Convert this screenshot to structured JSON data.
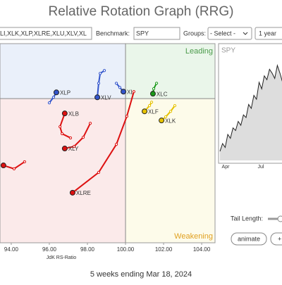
{
  "header": {
    "title": "Relative Rotation Graph (RRG)"
  },
  "controls": {
    "symbols": "LI,XLK,XLP,XLRE,XLU,XLV,XL",
    "benchmark_label": "Benchmark:",
    "benchmark": "SPY",
    "groups_label": "Groups:",
    "groups": "- Select -",
    "period": "1 year",
    "tail_length_label": "Tail Length:",
    "animate": "animate",
    "plus": "+"
  },
  "chart_data": {
    "type": "rrg",
    "xlabel": "JdK RS-Ratio",
    "xlim": [
      93.41,
      104.7
    ],
    "ylim": [
      92.4,
      102.9
    ],
    "center": [
      100,
      100
    ],
    "xticks": [
      {
        "value": 94,
        "label": "94.00"
      },
      {
        "value": 96,
        "label": "96.00"
      },
      {
        "value": 98,
        "label": "98.00"
      },
      {
        "value": 100,
        "label": "100.00"
      },
      {
        "value": 102,
        "label": "102.00"
      },
      {
        "value": 104,
        "label": "104.00"
      }
    ],
    "quadrant_labels": {
      "leading": "Leading",
      "weakening": "Weakening"
    },
    "series": [
      {
        "name": "XLP",
        "color": "#3355cc",
        "x": [
          96.0,
          96.22,
          96.37
        ],
        "y": [
          99.78,
          100.07,
          100.33
        ]
      },
      {
        "name": "XLV",
        "color": "#3355cc",
        "x": [
          98.89,
          98.67,
          98.59,
          98.52
        ],
        "y": [
          101.48,
          101.33,
          100.81,
          100.07
        ]
      },
      {
        "name": "XL",
        "color": "#3355cc",
        "x": [
          99.52,
          99.7,
          99.89
        ],
        "y": [
          100.81,
          100.59,
          100.37
        ]
      },
      {
        "name": "XLC",
        "color": "#1a9a1a",
        "x": [
          101.63,
          101.48,
          101.44
        ],
        "y": [
          100.81,
          100.52,
          100.26
        ]
      },
      {
        "name": "XLF",
        "color": "#e6c200",
        "x": [
          101.37,
          101.26,
          101.0
        ],
        "y": [
          99.81,
          99.63,
          99.33
        ]
      },
      {
        "name": "XLK",
        "color": "#e6c200",
        "x": [
          102.59,
          102.37,
          102.11,
          101.89
        ],
        "y": [
          99.63,
          99.33,
          99.04,
          98.85
        ]
      },
      {
        "name": "XLB",
        "color": "#dd1111",
        "x": [
          97.11,
          96.67,
          96.56,
          96.81
        ],
        "y": [
          97.93,
          98.15,
          98.52,
          99.22
        ]
      },
      {
        "name": "XLY",
        "color": "#dd1111",
        "x": [
          98.15,
          97.78,
          97.3,
          96.81
        ],
        "y": [
          98.7,
          97.96,
          97.48,
          97.37
        ]
      },
      {
        "name": "XLRE",
        "color": "#dd1111",
        "x": [
          100.44,
          100.07,
          99.52,
          98.59,
          97.22
        ],
        "y": [
          100.37,
          99.07,
          97.59,
          96.11,
          95.04
        ]
      },
      {
        "color": "#dd1111",
        "x": [
          94.7,
          94.15,
          93.59
        ],
        "y": [
          96.67,
          96.3,
          96.48
        ]
      }
    ]
  },
  "benchmark_chart": {
    "title": "SPY",
    "x_labels": [
      "Apr",
      "Jul"
    ],
    "ylim": [
      385,
      465
    ],
    "values": [
      392,
      398,
      395,
      405,
      402,
      410,
      408,
      415,
      412,
      420,
      418,
      428,
      425,
      435,
      432,
      445,
      440,
      450,
      447,
      455,
      452,
      448,
      458,
      452,
      445
    ]
  },
  "footer": "5 weeks ending Mar 18, 2024"
}
